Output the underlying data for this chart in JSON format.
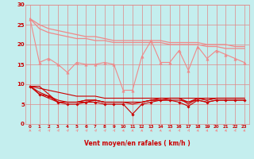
{
  "bg_color": "#c4eeee",
  "grid_color": "#e08888",
  "pink_color": "#f08888",
  "red_color": "#cc0000",
  "xlabel": "Vent moyen/en rafales ( km/h )",
  "ylim": [
    0,
    30
  ],
  "xlim": [
    -0.5,
    23.5
  ],
  "x": [
    0,
    1,
    2,
    3,
    4,
    5,
    6,
    7,
    8,
    9,
    10,
    11,
    12,
    13,
    14,
    15,
    16,
    17,
    18,
    19,
    20,
    21,
    22,
    23
  ],
  "line_diag1": [
    26.5,
    25.0,
    24.0,
    23.5,
    23.0,
    22.5,
    22.0,
    22.0,
    21.5,
    21.0,
    21.0,
    21.0,
    21.0,
    21.0,
    21.0,
    20.5,
    20.5,
    20.5,
    20.5,
    20.0,
    20.0,
    20.0,
    19.5,
    19.5
  ],
  "line_diag2": [
    26.5,
    24.0,
    23.0,
    22.5,
    22.0,
    21.5,
    21.5,
    21.0,
    21.0,
    20.5,
    20.5,
    20.5,
    20.5,
    20.5,
    20.5,
    20.0,
    20.0,
    20.0,
    20.0,
    19.5,
    19.5,
    19.0,
    19.0,
    19.0
  ],
  "line_zigzag": [
    26.5,
    15.5,
    16.5,
    15.0,
    13.0,
    15.5,
    15.0,
    15.0,
    15.5,
    15.0,
    8.5,
    8.5,
    17.0,
    21.0,
    15.5,
    15.5,
    18.5,
    13.5,
    19.5,
    16.5,
    18.5,
    17.5,
    16.5,
    15.5
  ],
  "line_red1": [
    9.5,
    9.5,
    7.5,
    5.5,
    5.5,
    5.5,
    6.0,
    6.0,
    5.5,
    5.5,
    5.5,
    5.0,
    5.5,
    6.0,
    6.5,
    6.5,
    6.5,
    5.0,
    6.5,
    6.0,
    6.5,
    6.5,
    6.5,
    6.5
  ],
  "line_red2": [
    9.5,
    7.5,
    7.0,
    5.5,
    5.0,
    5.0,
    5.5,
    5.5,
    5.0,
    5.0,
    5.0,
    2.5,
    5.0,
    5.5,
    6.0,
    6.0,
    5.5,
    4.5,
    6.0,
    5.5,
    6.0,
    6.0,
    6.0,
    6.0
  ],
  "line_red3": [
    9.5,
    7.5,
    6.5,
    5.5,
    5.5,
    5.5,
    5.5,
    6.0,
    5.5,
    5.5,
    5.5,
    5.5,
    5.5,
    6.0,
    6.0,
    6.0,
    6.0,
    5.5,
    6.0,
    5.5,
    6.0,
    6.0,
    6.0,
    6.0
  ],
  "line_red4": [
    9.5,
    8.0,
    7.0,
    6.0,
    5.5,
    5.5,
    6.0,
    6.0,
    5.5,
    5.5,
    5.5,
    5.5,
    5.5,
    6.0,
    6.0,
    6.5,
    6.5,
    5.5,
    6.5,
    6.0,
    6.5,
    6.5,
    6.5,
    6.5
  ],
  "line_diag_red": [
    9.5,
    9.0,
    8.5,
    8.0,
    7.5,
    7.0,
    7.0,
    7.0,
    6.5,
    6.5,
    6.5,
    6.5,
    6.5,
    6.5,
    6.5,
    6.5,
    6.5,
    6.5,
    6.5,
    6.5,
    6.5,
    6.5,
    6.5,
    6.5
  ],
  "arrow_angles": [
    180,
    158,
    148,
    153,
    148,
    143,
    143,
    148,
    148,
    153,
    163,
    173,
    173,
    168,
    168,
    163,
    158,
    158,
    163,
    163,
    163,
    163,
    158,
    168
  ]
}
